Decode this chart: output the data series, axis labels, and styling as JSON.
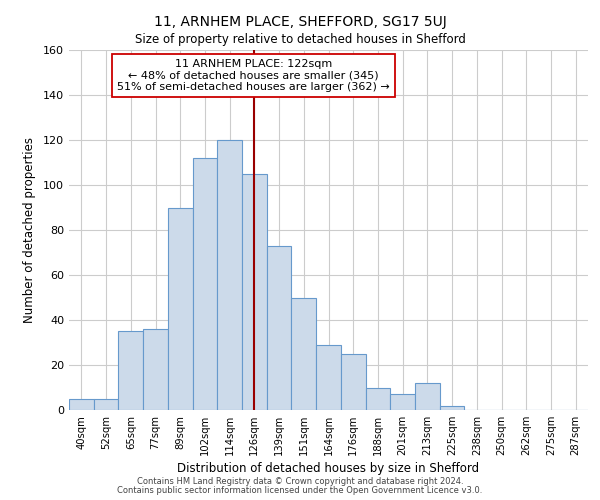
{
  "title_line1": "11, ARNHEM PLACE, SHEFFORD, SG17 5UJ",
  "title_line2": "Size of property relative to detached houses in Shefford",
  "xlabel": "Distribution of detached houses by size in Shefford",
  "ylabel": "Number of detached properties",
  "bar_labels": [
    "40sqm",
    "52sqm",
    "65sqm",
    "77sqm",
    "89sqm",
    "102sqm",
    "114sqm",
    "126sqm",
    "139sqm",
    "151sqm",
    "164sqm",
    "176sqm",
    "188sqm",
    "201sqm",
    "213sqm",
    "225sqm",
    "238sqm",
    "250sqm",
    "262sqm",
    "275sqm",
    "287sqm"
  ],
  "bar_values": [
    5,
    5,
    35,
    36,
    90,
    112,
    120,
    105,
    73,
    50,
    29,
    25,
    10,
    7,
    12,
    2,
    0,
    0,
    0,
    0,
    0
  ],
  "bar_color": "#ccdaea",
  "bar_edge_color": "#6699cc",
  "vline_x_bar_index": 7,
  "vline_color": "#990000",
  "annotation_title": "11 ARNHEM PLACE: 122sqm",
  "annotation_line1": "← 48% of detached houses are smaller (345)",
  "annotation_line2": "51% of semi-detached houses are larger (362) →",
  "annotation_box_color": "#ffffff",
  "annotation_box_edge": "#cc0000",
  "ylim": [
    0,
    160
  ],
  "yticks": [
    0,
    20,
    40,
    60,
    80,
    100,
    120,
    140,
    160
  ],
  "footer_line1": "Contains HM Land Registry data © Crown copyright and database right 2024.",
  "footer_line2": "Contains public sector information licensed under the Open Government Licence v3.0.",
  "background_color": "#ffffff",
  "grid_color": "#cccccc"
}
